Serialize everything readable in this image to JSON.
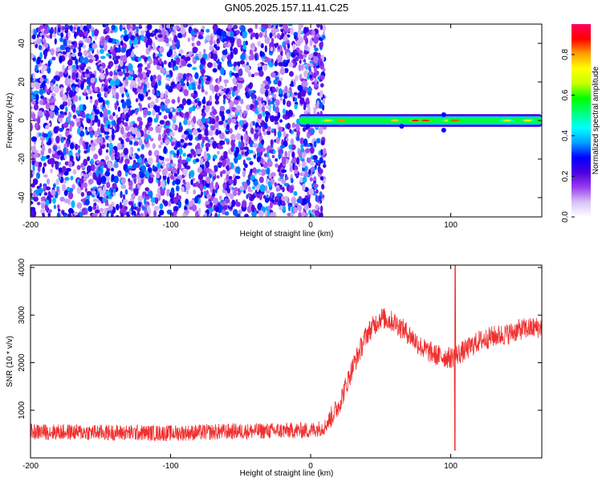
{
  "title": "GN05.2025.157.11.41.C25",
  "chart_data": [
    {
      "type": "heatmap",
      "xlabel": "Height of straight line (km)",
      "ylabel": "Frequency (Hz)",
      "xlim": [
        -200,
        165
      ],
      "ylim": [
        -50,
        50
      ],
      "xticks": [
        -200,
        -100,
        0,
        100
      ],
      "yticks": [
        -40,
        -20,
        0,
        20,
        40
      ],
      "colorbar": {
        "label": "Normalized spectral amplitude",
        "range": [
          0,
          0.95
        ],
        "ticks": [
          0.0,
          0.2,
          0.4,
          0.6,
          0.8
        ],
        "colors": [
          "#ffffff",
          "#d9c2f5",
          "#9a3cf0",
          "#4b00e0",
          "#0000ff",
          "#00a0ff",
          "#00ffff",
          "#00ff80",
          "#00ff00",
          "#c8ff00",
          "#ffff00",
          "#ffa000",
          "#ff0000",
          "#ff0060"
        ]
      },
      "noise_region": {
        "x": [
          -200,
          5
        ],
        "level": 0.1
      },
      "signal_band": {
        "x": [
          -8,
          165
        ],
        "freq_center": 0,
        "freq_halfwidth": 3,
        "peak_level": 0.9
      }
    },
    {
      "type": "line",
      "xlabel": "Height of straight line (km)",
      "ylabel": "SNR (10 * v/v)",
      "xlim": [
        -200,
        165
      ],
      "ylim": [
        0,
        4050
      ],
      "xticks": [
        -200,
        -100,
        0,
        100
      ],
      "yticks": [
        1000,
        2000,
        3000,
        4000
      ],
      "color": "#f03030",
      "trend": {
        "x": [
          -200,
          -100,
          -50,
          0,
          10,
          20,
          30,
          40,
          50,
          60,
          70,
          80,
          90,
          100,
          110,
          120,
          130,
          140,
          150,
          165
        ],
        "y": [
          550,
          520,
          560,
          580,
          650,
          1100,
          1900,
          2600,
          2950,
          2850,
          2600,
          2300,
          2150,
          2100,
          2250,
          2450,
          2550,
          2600,
          2700,
          2750
        ]
      },
      "spike": {
        "x": 103,
        "y_max": 4050,
        "y_min": 150
      }
    }
  ]
}
